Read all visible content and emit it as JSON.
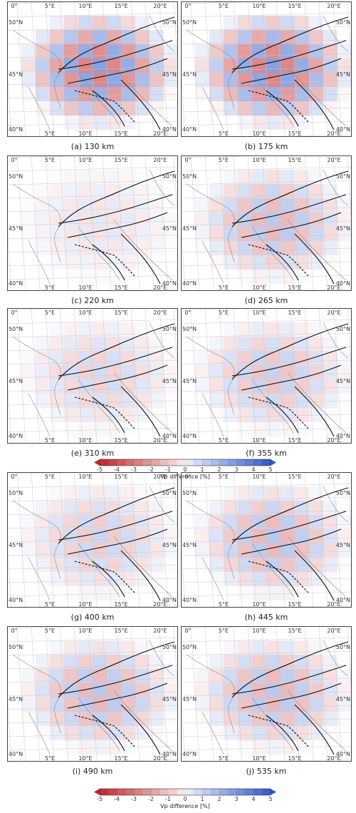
{
  "figure": {
    "panels": [
      {
        "caption": "(a) 130 km",
        "amp": 0.95
      },
      {
        "caption": "(b) 175 km",
        "amp": 0.95
      },
      {
        "caption": "(c) 220 km",
        "amp": 0.22
      },
      {
        "caption": "(d) 265 km",
        "amp": 0.55
      },
      {
        "caption": "(e) 310 km",
        "amp": 0.35
      },
      {
        "caption": "(f) 355 km",
        "amp": 0.45
      },
      {
        "caption": "(g) 400 km",
        "amp": 0.4
      },
      {
        "caption": "(h) 445 km",
        "amp": 0.55
      },
      {
        "caption": "(i) 490 km",
        "amp": 0.55
      },
      {
        "caption": "(j) 535 km",
        "amp": 0.55
      }
    ],
    "lon_ticks": [
      "0°",
      "5°E",
      "10°E",
      "15°E",
      "20°E"
    ],
    "lat_ticks": [
      "50°N",
      "45°N",
      "40°N"
    ],
    "colorbar": {
      "ticks": [
        "-5",
        "-4",
        "-3",
        "-2",
        "-1",
        "0",
        "1",
        "2",
        "3",
        "4",
        "5"
      ],
      "label": "Vp difference [%]",
      "negative_color": "#c0262b",
      "positive_color": "#2f58c9"
    }
  }
}
